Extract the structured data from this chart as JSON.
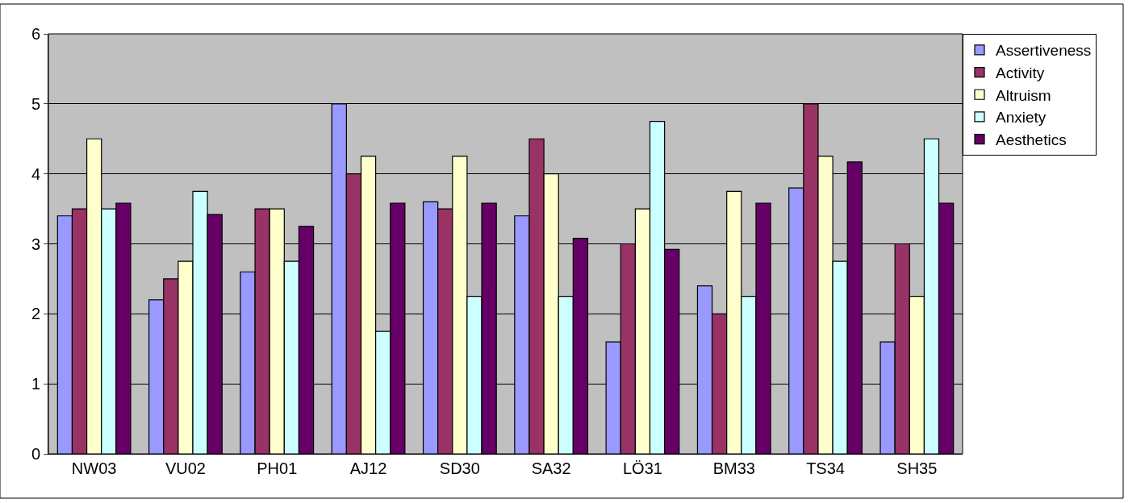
{
  "chart_data": {
    "type": "bar",
    "categories": [
      "NW03",
      "VU02",
      "PH01",
      "AJ12",
      "SD30",
      "SA32",
      "LÖ31",
      "BM33",
      "TS34",
      "SH35"
    ],
    "series": [
      {
        "name": "Assertiveness",
        "color": "#9999ff",
        "values": [
          3.4,
          2.2,
          2.6,
          5.0,
          3.6,
          3.4,
          1.6,
          2.4,
          3.8,
          1.6
        ]
      },
      {
        "name": "Activity",
        "color": "#993366",
        "values": [
          3.5,
          2.5,
          3.5,
          4.0,
          3.5,
          4.5,
          3.0,
          2.0,
          5.0,
          3.0
        ]
      },
      {
        "name": "Altruism",
        "color": "#ffffcc",
        "values": [
          4.5,
          2.75,
          3.5,
          4.25,
          4.25,
          4.0,
          3.5,
          3.75,
          4.25,
          2.25
        ]
      },
      {
        "name": "Anxiety",
        "color": "#ccffff",
        "values": [
          3.5,
          3.75,
          2.75,
          1.75,
          2.25,
          2.25,
          4.75,
          2.25,
          2.75,
          4.5
        ]
      },
      {
        "name": "Aesthetics",
        "color": "#660066",
        "values": [
          3.58,
          3.42,
          3.25,
          3.58,
          3.58,
          3.08,
          2.92,
          3.58,
          4.17,
          3.58
        ]
      }
    ],
    "ylim": [
      0,
      6
    ],
    "yticks": [
      0,
      1,
      2,
      3,
      4,
      5,
      6
    ],
    "grid": "y",
    "legend": "right"
  }
}
